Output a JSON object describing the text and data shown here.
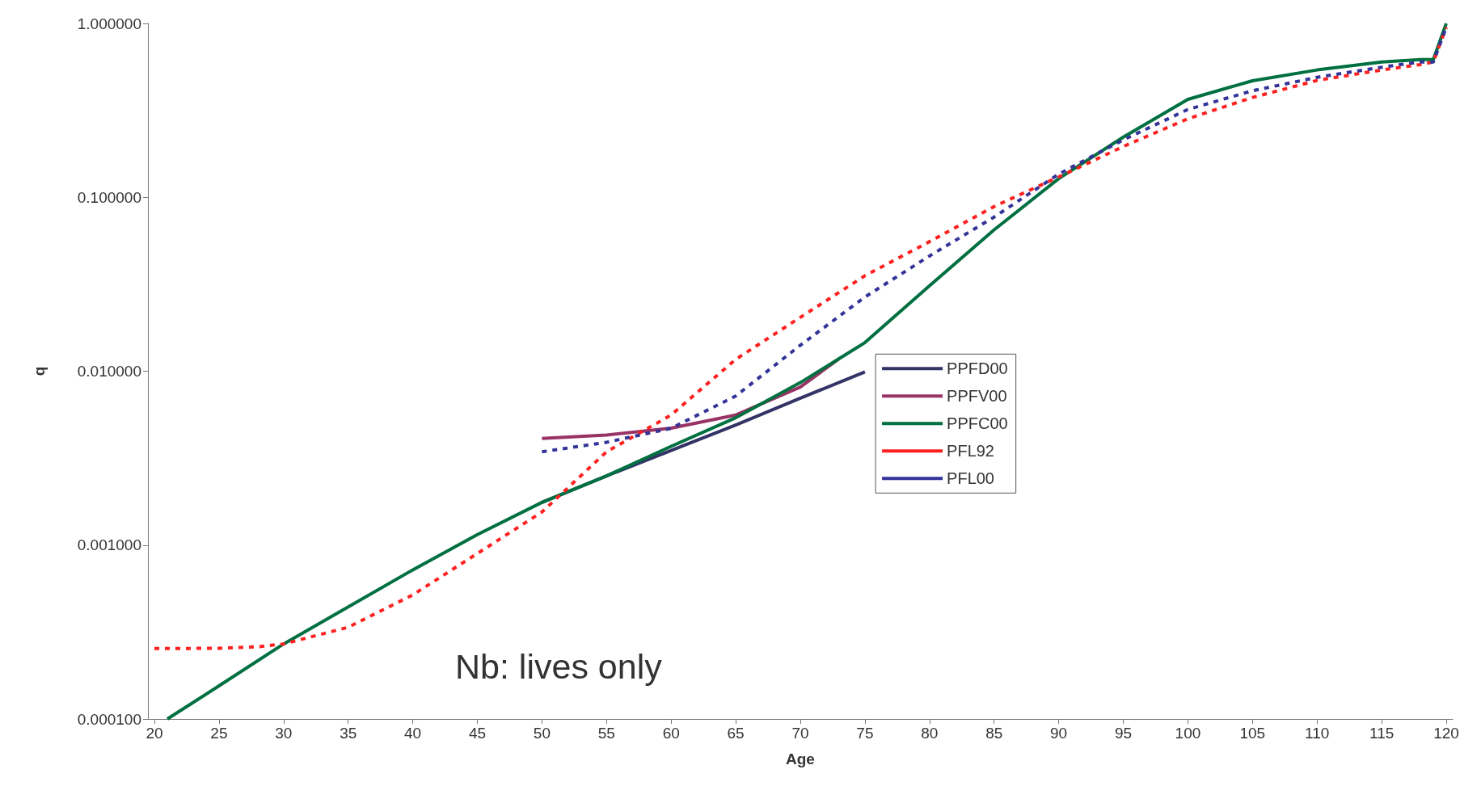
{
  "chart_data": {
    "type": "line",
    "xlabel": "Age",
    "ylabel": "q",
    "log": "y",
    "grid": false,
    "legend": "right",
    "marker": "none",
    "xlim": [
      19.5,
      120.5
    ],
    "xticks": [
      20,
      25,
      30,
      35,
      40,
      45,
      50,
      55,
      60,
      65,
      70,
      75,
      80,
      85,
      90,
      95,
      100,
      105,
      110,
      115,
      120
    ],
    "ylim": [
      0.0001,
      1
    ],
    "yticks": [
      {
        "value": 0.0001,
        "label": "0.000100"
      },
      {
        "value": 0.001,
        "label": "0.001000"
      },
      {
        "value": 0.01,
        "label": "0.010000"
      },
      {
        "value": 0.1,
        "label": "0.100000"
      },
      {
        "value": 1,
        "label": "1.000000"
      }
    ],
    "annotations": [
      "Nb: lives only"
    ],
    "series": [
      {
        "name": "PPFD00",
        "color": "#333366",
        "line_style": "solid",
        "x": [
          50,
          55,
          60,
          65,
          70,
          75
        ],
        "values": [
          0.00176,
          0.0025,
          0.0035,
          0.0049,
          0.007,
          0.0099
        ]
      },
      {
        "name": "PPFV00",
        "color": "#993366",
        "line_style": "solid",
        "x": [
          50,
          55,
          60,
          65,
          70,
          73
        ],
        "values": [
          0.0041,
          0.0043,
          0.0047,
          0.0056,
          0.0081,
          0.0118
        ]
      },
      {
        "name": "PPFC00",
        "color": "#007040",
        "line_style": "solid",
        "x": [
          21,
          25,
          30,
          40,
          45,
          50,
          55,
          60,
          65,
          70,
          73,
          75,
          80,
          85,
          90,
          95,
          100,
          105,
          110,
          115,
          118,
          119,
          120
        ],
        "values": [
          0.0001,
          0.000155,
          0.00027,
          0.00072,
          0.00115,
          0.00176,
          0.0025,
          0.0037,
          0.0054,
          0.0086,
          0.0118,
          0.0146,
          0.031,
          0.065,
          0.128,
          0.222,
          0.366,
          0.468,
          0.54,
          0.6,
          0.62,
          0.62,
          1.0
        ]
      },
      {
        "name": "PFL92",
        "color": "#ff2020",
        "line_style": "dashed",
        "x": [
          20,
          25,
          28,
          30,
          35,
          40,
          45,
          50,
          55,
          60,
          65,
          70,
          75,
          80,
          85,
          90,
          95,
          100,
          105,
          110,
          115,
          118,
          119,
          120
        ],
        "values": [
          0.000254,
          0.000255,
          0.00026,
          0.00027,
          0.000337,
          0.000517,
          0.000895,
          0.00155,
          0.00344,
          0.0056,
          0.0117,
          0.0204,
          0.0354,
          0.0556,
          0.0885,
          0.131,
          0.196,
          0.283,
          0.375,
          0.47,
          0.54,
          0.58,
          0.6,
          0.95
        ]
      },
      {
        "name": "PFL00",
        "color": "#333399",
        "line_style": "dashed",
        "x": [
          50,
          55,
          60,
          65,
          70,
          75,
          80,
          85,
          90,
          95,
          100,
          105,
          110,
          115,
          118,
          119,
          120
        ],
        "values": [
          0.00344,
          0.0039,
          0.0047,
          0.0072,
          0.0141,
          0.0267,
          0.046,
          0.077,
          0.136,
          0.214,
          0.32,
          0.41,
          0.49,
          0.56,
          0.6,
          0.6,
          0.95
        ]
      }
    ]
  }
}
